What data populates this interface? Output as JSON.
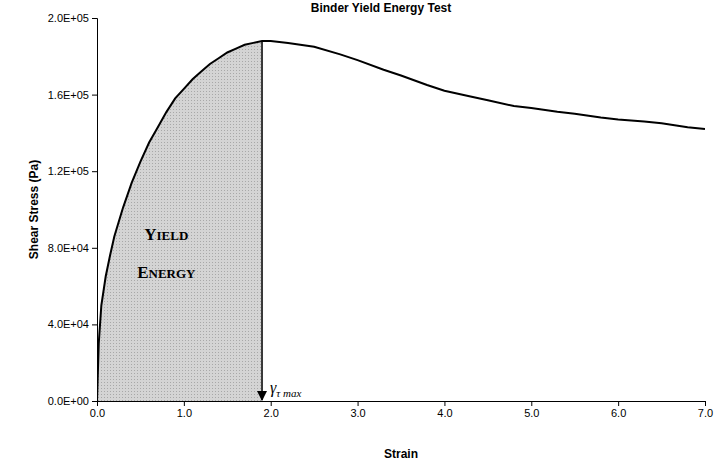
{
  "chart_data": {
    "type": "line",
    "title": "Binder Yield Energy Test",
    "x_label": "Strain",
    "y_label": "Shear Stress (Pa)",
    "area_label": [
      "YIELD",
      "ENERGY"
    ],
    "peak_label": "γτ max",
    "yield_strain": 1.9,
    "color": "#000000",
    "area_color": "#d4d4d4",
    "x": [
      0,
      0.02,
      0.05,
      0.1,
      0.15,
      0.2,
      0.3,
      0.4,
      0.5,
      0.6,
      0.7,
      0.8,
      0.9,
      1.0,
      1.1,
      1.2,
      1.3,
      1.4,
      1.5,
      1.6,
      1.7,
      1.8,
      1.9,
      2.0,
      2.2,
      2.5,
      2.8,
      3.0,
      3.3,
      3.5,
      3.8,
      4.0,
      4.3,
      4.5,
      4.8,
      5.0,
      5.3,
      5.5,
      5.8,
      6.0,
      6.3,
      6.5,
      6.8,
      7.0
    ],
    "values": [
      0,
      30000,
      50000,
      65000,
      76000,
      86000,
      101000,
      114000,
      125000,
      135000,
      143000,
      151000,
      158000,
      163000,
      168000,
      172000,
      176000,
      179000,
      182000,
      184000,
      186000,
      187000,
      188000,
      188000,
      187000,
      185000,
      181000,
      178000,
      173000,
      170000,
      165000,
      162000,
      159000,
      157000,
      154000,
      153000,
      151000,
      150000,
      148000,
      147000,
      146000,
      145000,
      143000,
      142000
    ],
    "xlim": [
      0,
      7
    ],
    "ylim": [
      0,
      200000
    ],
    "xticks": [
      {
        "value": 0,
        "label": "0.0"
      },
      {
        "value": 1,
        "label": "1.0"
      },
      {
        "value": 2,
        "label": "2.0"
      },
      {
        "value": 3,
        "label": "3.0"
      },
      {
        "value": 4,
        "label": "4.0"
      },
      {
        "value": 5,
        "label": "5.0"
      },
      {
        "value": 6,
        "label": "6.0"
      },
      {
        "value": 7,
        "label": "7.0"
      }
    ],
    "yticks": [
      {
        "value": 0,
        "label": "0.0E+00"
      },
      {
        "value": 40000,
        "label": "4.0E+04"
      },
      {
        "value": 80000,
        "label": "8.0E+04"
      },
      {
        "value": 120000,
        "label": "1.2E+05"
      },
      {
        "value": 160000,
        "label": "1.6E+05"
      },
      {
        "value": 200000,
        "label": "2.0E+05"
      }
    ],
    "grid": false
  }
}
